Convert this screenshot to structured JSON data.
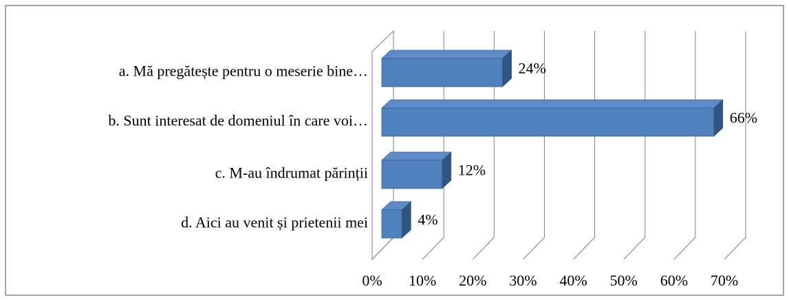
{
  "chart_data": {
    "type": "bar3d_horizontal",
    "categories": [
      "a. Mă pregătește pentru o meserie bine…",
      "b. Sunt interesat de domeniul în care voi…",
      "c. M-au îndrumat părinții",
      "d. Aici au venit și prietenii mei"
    ],
    "values": [
      24,
      66,
      12,
      4
    ],
    "value_labels": [
      "24%",
      "66%",
      "12%",
      "4%"
    ],
    "color": "#4f81bd",
    "xlim": [
      0,
      70
    ],
    "xticks": [
      {
        "value": 0,
        "label": "0%"
      },
      {
        "value": 10,
        "label": "10%"
      },
      {
        "value": 20,
        "label": "20%"
      },
      {
        "value": 30,
        "label": "30%"
      },
      {
        "value": 40,
        "label": "40%"
      },
      {
        "value": 50,
        "label": "50%"
      },
      {
        "value": 60,
        "label": "60%"
      },
      {
        "value": 70,
        "label": "70%"
      }
    ],
    "grid": true
  }
}
